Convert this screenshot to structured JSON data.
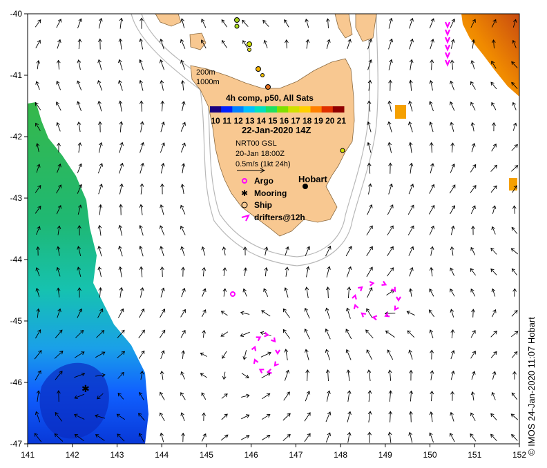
{
  "map": {
    "x_ticks": [
      "141",
      "142",
      "143",
      "144",
      "145",
      "146",
      "147",
      "148",
      "149",
      "150",
      "151",
      "152"
    ],
    "y_ticks": [
      "-40",
      "-41",
      "-42",
      "-43",
      "-44",
      "-45",
      "-46",
      "-47"
    ],
    "lon_range": [
      141,
      152
    ],
    "lat_range": [
      -47,
      -40
    ],
    "colors": {
      "land": "#f8c891",
      "coast": "#8a6a40",
      "isobath": "#b8b8b8",
      "argo": "#ff00ff",
      "drifter": "#ff00ff"
    }
  },
  "legend": {
    "isobath_200": "200m",
    "isobath_1000": "1000m",
    "product": "4h comp, p50, All Sats",
    "colorbar_labels": [
      "10",
      "11",
      "12",
      "13",
      "14",
      "15",
      "16",
      "17",
      "18",
      "19",
      "20",
      "21"
    ],
    "colorbar_colors": [
      "#1a007f",
      "#0020ff",
      "#0080ff",
      "#00c0ff",
      "#00e0c0",
      "#20e060",
      "#80e000",
      "#d0e000",
      "#ffd000",
      "#ff8000",
      "#e03000",
      "#900000"
    ],
    "date": "22-Jan-2020 14Z",
    "model": "NRT00 GSL",
    "model_time": "20-Jan 18:00Z",
    "speed_scale": "0.5m/s (1kt 24h)",
    "argo": "Argo",
    "mooring": "Mooring",
    "ship": "Ship",
    "drifters": "drifters@12h",
    "city": "Hobart"
  },
  "credit": "© IMOS 24-Jan-2020 11:07 Hobart"
}
